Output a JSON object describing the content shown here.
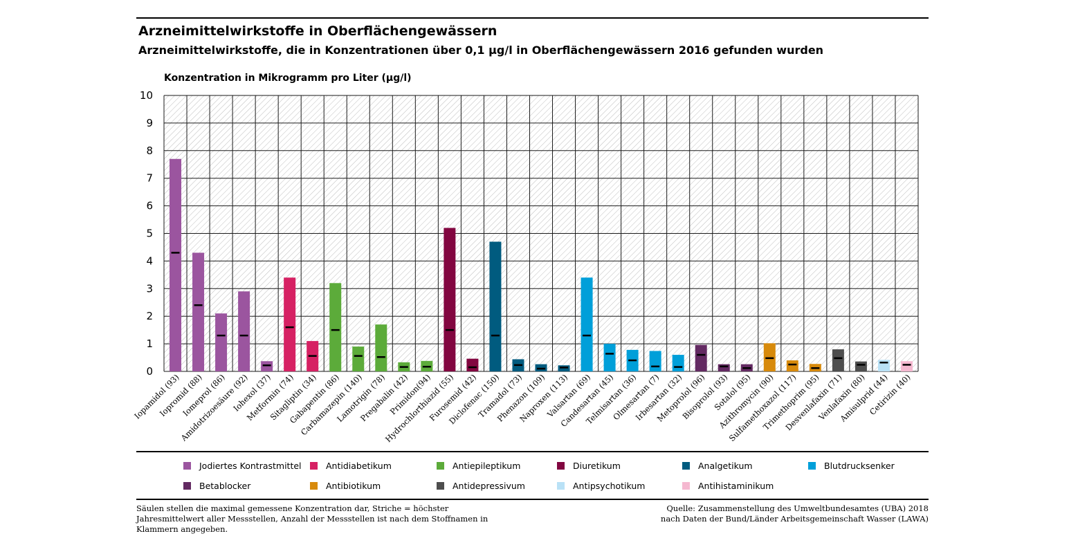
{
  "header": {
    "title": "Arzneimittelwirkstoffe in Oberflächengewässern",
    "subtitle": "Arzneimittelwirkstoffe, die in Konzentrationen über 0,1 µg/l in Oberflächengewässern 2016 gefunden wurden"
  },
  "footer": {
    "note": "Säulen stellen die maximal gemessene Konzentration dar, Striche = höchster Jahresmittelwert aller Messstellen, Anzahl der Messstellen ist nach dem Stoffnamen in Klammern angegeben.",
    "source": "Quelle: Zusammenstellung des Umweltbundesamtes (UBA) 2018 nach Daten der Bund/Länder Arbeitsgemeinschaft Wasser (LAWA)"
  },
  "chart_data": {
    "type": "bar",
    "ylabel": "Konzentration in Mikrogramm pro Liter (µg/l)",
    "ylim": [
      0,
      10
    ],
    "yticks": [
      "0",
      "1",
      "2",
      "3",
      "4",
      "5",
      "6",
      "7",
      "8",
      "9",
      "10"
    ],
    "grid": true,
    "legend_placement": "bottom",
    "groups": [
      {
        "name": "Jodiertes Kontrastmittel",
        "color": "#9b559f"
      },
      {
        "name": "Antidiabetikum",
        "color": "#d62163"
      },
      {
        "name": "Antiepileptikum",
        "color": "#5cab3a"
      },
      {
        "name": "Diuretikum",
        "color": "#820640"
      },
      {
        "name": "Analgetikum",
        "color": "#005b7f"
      },
      {
        "name": "Blutdrucksenker",
        "color": "#009fd9"
      },
      {
        "name": "Betablocker",
        "color": "#632a62"
      },
      {
        "name": "Antibiotikum",
        "color": "#d78a0c"
      },
      {
        "name": "Antidepressivum",
        "color": "#4e4e4e"
      },
      {
        "name": "Antipsychotikum",
        "color": "#b9e1f6"
      },
      {
        "name": "Antihistaminikum",
        "color": "#f5b8d0"
      }
    ],
    "categories": [
      "Iopamidol (93)",
      "Iopromid (88)",
      "Iomeprol (86)",
      "Amidotrizoesäure (92)",
      "Iohexol (37)",
      "Metformin (74)",
      "Sitagliptin (34)",
      "Gabapentin (86)",
      "Carbamazepin (140)",
      "Lamotrigin (78)",
      "Pregabalin (42)",
      "Primidon(94)",
      "Hydrochlorthiazid (55)",
      "Furosemid (42)",
      "Diclofenac (150)",
      "Tramadol (73)",
      "Phenazon (109)",
      "Naproxen (113)",
      "Valsartan (69)",
      "Candesartan (45)",
      "Telmisartan (36)",
      "Olmesartan (7)",
      "Irbesartan (32)",
      "Metoprolol (96)",
      "Bisoprolol (93)",
      "Sotalol (95)",
      "Azithromycin (90)",
      "Sulfamethoxazol (117)",
      "Trimethoprim (95)",
      "Desvenlafaxin (71)",
      "Venlafaxin (80)",
      "Amisulprid (44)",
      "Cetirizin (40)"
    ],
    "group_index": [
      0,
      0,
      0,
      0,
      0,
      1,
      1,
      2,
      2,
      2,
      2,
      2,
      3,
      3,
      4,
      4,
      4,
      4,
      5,
      5,
      5,
      5,
      5,
      6,
      6,
      6,
      7,
      7,
      7,
      8,
      8,
      9,
      10
    ],
    "series": [
      {
        "name": "Säulen stellen die maximal gemessene Konzentration dar",
        "values": [
          7.7,
          4.3,
          2.1,
          2.9,
          0.37,
          3.4,
          1.1,
          3.2,
          0.9,
          1.7,
          0.33,
          0.38,
          5.2,
          0.46,
          4.7,
          0.44,
          0.26,
          0.22,
          3.4,
          1.0,
          0.78,
          0.74,
          0.6,
          0.96,
          0.26,
          0.26,
          1.02,
          0.4,
          0.27,
          0.8,
          0.36,
          0.42,
          0.37
        ]
      },
      {
        "name": "Striche = höchster Jahresmittelwert aller Messstellen",
        "values": [
          4.3,
          2.4,
          1.3,
          1.3,
          0.22,
          1.6,
          0.56,
          1.5,
          0.56,
          0.52,
          0.16,
          0.17,
          1.5,
          0.15,
          1.3,
          0.23,
          0.1,
          0.14,
          1.3,
          0.64,
          0.4,
          0.18,
          0.16,
          0.6,
          0.18,
          0.12,
          0.48,
          0.25,
          0.12,
          0.48,
          0.24,
          0.32,
          0.24
        ]
      }
    ]
  }
}
